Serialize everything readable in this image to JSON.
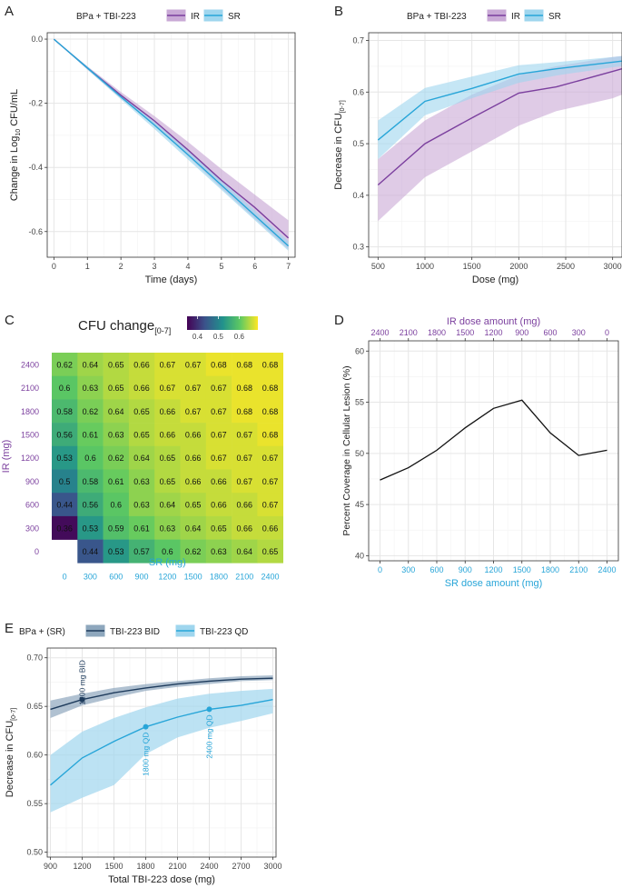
{
  "colors": {
    "ir": "#7b3f9e",
    "ir_fill": "#c9a9d6",
    "sr": "#27a5d8",
    "sr_fill": "#9fd6ee",
    "bid": "#1e3b5c",
    "bid_fill": "#8ea7bd",
    "grid": "#e6e6e6",
    "border": "#333333",
    "text": "#222222"
  },
  "panel_letters": {
    "a": "A",
    "b": "B",
    "c": "C",
    "d": "D",
    "e": "E"
  },
  "chart_data": [
    {
      "id": "A",
      "type": "line",
      "legend_title": "BPa + TBI-223",
      "xlabel": "Time (days)",
      "ylabel_main": "Change in Log",
      "ylabel_sub": "10",
      "ylabel_tail": " CFU/mL",
      "xlim": [
        -0.2,
        7.2
      ],
      "ylim": [
        -0.68,
        0.02
      ],
      "xticks": [
        0,
        1,
        2,
        3,
        4,
        5,
        6,
        7
      ],
      "yticks": [
        -0.6,
        -0.4,
        -0.2,
        0.0
      ],
      "ytick_labels": [
        "-0.6",
        "-0.4",
        "-0.2",
        "0.0"
      ],
      "series": [
        {
          "name": "IR",
          "x": [
            0,
            1,
            2,
            3,
            4,
            5,
            6,
            7
          ],
          "values": [
            0,
            -0.09,
            -0.175,
            -0.255,
            -0.345,
            -0.44,
            -0.525,
            -0.62
          ],
          "lower": [
            0,
            -0.095,
            -0.185,
            -0.27,
            -0.365,
            -0.465,
            -0.56,
            -0.655
          ],
          "upper": [
            0,
            -0.085,
            -0.165,
            -0.24,
            -0.32,
            -0.405,
            -0.485,
            -0.565
          ]
        },
        {
          "name": "SR",
          "x": [
            0,
            1,
            2,
            3,
            4,
            5,
            6,
            7
          ],
          "values": [
            0,
            -0.09,
            -0.18,
            -0.268,
            -0.36,
            -0.455,
            -0.55,
            -0.645
          ],
          "lower": [
            0,
            -0.095,
            -0.188,
            -0.28,
            -0.375,
            -0.47,
            -0.565,
            -0.66
          ],
          "upper": [
            0,
            -0.085,
            -0.172,
            -0.258,
            -0.347,
            -0.44,
            -0.535,
            -0.63
          ]
        }
      ]
    },
    {
      "id": "B",
      "type": "line",
      "legend_title": "BPa + TBI-223",
      "xlabel": "Dose (mg)",
      "ylabel_main": "Decrease in CFU",
      "ylabel_sub": "[0-7]",
      "xlim": [
        400,
        3100
      ],
      "ylim": [
        0.28,
        0.715
      ],
      "xticks": [
        500,
        1000,
        1500,
        2000,
        2500,
        3000
      ],
      "yticks": [
        0.3,
        0.4,
        0.5,
        0.6,
        0.7
      ],
      "ytick_labels": [
        "0.3",
        "0.4",
        "0.5",
        "0.6",
        "0.7"
      ],
      "series": [
        {
          "name": "IR",
          "x": [
            500,
            1000,
            1500,
            2000,
            2400,
            3000,
            3100
          ],
          "values": [
            0.42,
            0.5,
            0.55,
            0.598,
            0.61,
            0.64,
            0.645
          ],
          "lower": [
            0.35,
            0.435,
            0.485,
            0.535,
            0.563,
            0.588,
            0.595
          ],
          "upper": [
            0.47,
            0.545,
            0.595,
            0.633,
            0.65,
            0.668,
            0.67
          ]
        },
        {
          "name": "SR",
          "x": [
            500,
            1000,
            1500,
            2000,
            2400,
            3000,
            3100
          ],
          "values": [
            0.507,
            0.582,
            0.607,
            0.635,
            0.645,
            0.658,
            0.66
          ],
          "lower": [
            0.47,
            0.555,
            0.588,
            0.618,
            0.632,
            0.648,
            0.65
          ],
          "upper": [
            0.545,
            0.608,
            0.63,
            0.652,
            0.658,
            0.668,
            0.67
          ]
        }
      ]
    },
    {
      "id": "C",
      "type": "heatmap",
      "title_main": "CFU change",
      "title_sub": "[0-7]",
      "xlabel": "SR (mg)",
      "ylabel": "IR (mg)",
      "colorbar_ticks": [
        0.4,
        0.5,
        0.6
      ],
      "colorbar_tick_labels": [
        "0.4",
        "0.5",
        "0.6"
      ],
      "value_range": [
        0.35,
        0.69
      ],
      "sr_doses": [
        "0",
        "300",
        "600",
        "900",
        "1200",
        "1500",
        "1800",
        "2100",
        "2400"
      ],
      "ir_doses": [
        "2400",
        "2100",
        "1800",
        "1500",
        "1200",
        "900",
        "600",
        "300",
        "0"
      ],
      "cells": [
        [
          "0.62",
          "0.64",
          "0.65",
          "0.66",
          "0.67",
          "0.67",
          "0.68",
          "0.68",
          "0.68"
        ],
        [
          "0.6",
          "0.63",
          "0.65",
          "0.66",
          "0.67",
          "0.67",
          "0.67",
          "0.68",
          "0.68"
        ],
        [
          "0.58",
          "0.62",
          "0.64",
          "0.65",
          "0.66",
          "0.67",
          "0.67",
          "0.68",
          "0.68"
        ],
        [
          "0.56",
          "0.61",
          "0.63",
          "0.65",
          "0.66",
          "0.66",
          "0.67",
          "0.67",
          "0.68"
        ],
        [
          "0.53",
          "0.6",
          "0.62",
          "0.64",
          "0.65",
          "0.66",
          "0.67",
          "0.67",
          "0.67"
        ],
        [
          "0.5",
          "0.58",
          "0.61",
          "0.63",
          "0.65",
          "0.66",
          "0.66",
          "0.67",
          "0.67"
        ],
        [
          "0.44",
          "0.56",
          "0.6",
          "0.63",
          "0.64",
          "0.65",
          "0.66",
          "0.66",
          "0.67"
        ],
        [
          "0.36",
          "0.53",
          "0.59",
          "0.61",
          "0.63",
          "0.64",
          "0.65",
          "0.66",
          "0.66"
        ],
        [
          "",
          "0.44",
          "0.53",
          "0.57",
          "0.6",
          "0.62",
          "0.63",
          "0.64",
          "0.65"
        ]
      ]
    },
    {
      "id": "D",
      "type": "line",
      "xlabel": "SR dose amount (mg)",
      "top_xlabel": "IR dose amount (mg)",
      "ylabel": "Percent Coverage in Cellular Lesion (%)",
      "xlim": [
        -120,
        2520
      ],
      "ylim": [
        39.5,
        61
      ],
      "xticks": [
        0,
        300,
        600,
        900,
        1200,
        1500,
        1800,
        2100,
        2400
      ],
      "xtick_labels": [
        "0",
        "300",
        "600",
        "900",
        "1200",
        "1500",
        "1800",
        "2100",
        "2400"
      ],
      "top_xtick_labels": [
        "2400",
        "2100",
        "1800",
        "1500",
        "1200",
        "900",
        "600",
        "300",
        "0"
      ],
      "yticks": [
        40,
        45,
        50,
        55,
        60
      ],
      "ytick_labels": [
        "40",
        "45",
        "50",
        "55",
        "60"
      ],
      "series": [
        {
          "name": "coverage",
          "x": [
            0,
            300,
            600,
            900,
            1200,
            1500,
            1800,
            2100,
            2400
          ],
          "values": [
            47.4,
            48.6,
            50.3,
            52.5,
            54.4,
            55.2,
            52.0,
            49.8,
            50.3
          ]
        }
      ]
    },
    {
      "id": "E",
      "type": "line",
      "legend_title": "BPa + (SR)",
      "xlabel": "Total TBI-223 dose (mg)",
      "ylabel_main": "Decrease in CFU",
      "ylabel_sub": "[0-7]",
      "xlim": [
        870,
        3030
      ],
      "ylim": [
        0.495,
        0.71
      ],
      "xticks": [
        900,
        1200,
        1500,
        1800,
        2100,
        2400,
        2700,
        3000
      ],
      "yticks": [
        0.5,
        0.55,
        0.6,
        0.65,
        0.7
      ],
      "ytick_labels": [
        "0.50",
        "0.55",
        "0.60",
        "0.65",
        "0.70"
      ],
      "series": [
        {
          "name": "TBI-223 BID",
          "x": [
            900,
            1200,
            1500,
            1800,
            2100,
            2400,
            2700,
            3000
          ],
          "values": [
            0.647,
            0.657,
            0.664,
            0.669,
            0.673,
            0.676,
            0.678,
            0.679
          ],
          "lower": [
            0.638,
            0.651,
            0.659,
            0.666,
            0.67,
            0.673,
            0.676,
            0.677
          ],
          "upper": [
            0.656,
            0.663,
            0.669,
            0.673,
            0.676,
            0.679,
            0.681,
            0.682
          ]
        },
        {
          "name": "TBI-223 QD",
          "x": [
            900,
            1200,
            1500,
            1800,
            2100,
            2400,
            2700,
            3000
          ],
          "values": [
            0.569,
            0.597,
            0.614,
            0.629,
            0.639,
            0.647,
            0.651,
            0.657
          ],
          "lower": [
            0.541,
            0.556,
            0.569,
            0.601,
            0.618,
            0.628,
            0.635,
            0.643
          ],
          "upper": [
            0.6,
            0.624,
            0.638,
            0.649,
            0.658,
            0.663,
            0.666,
            0.668
          ]
        }
      ],
      "annotations": [
        {
          "series": 0,
          "x": 1200,
          "y": 0.657,
          "text": "1200 mg BID"
        },
        {
          "series": 1,
          "x": 1800,
          "y": 0.629,
          "text": "1800 mg QD"
        },
        {
          "series": 1,
          "x": 2400,
          "y": 0.647,
          "text": "2400 mg QD"
        }
      ]
    }
  ]
}
